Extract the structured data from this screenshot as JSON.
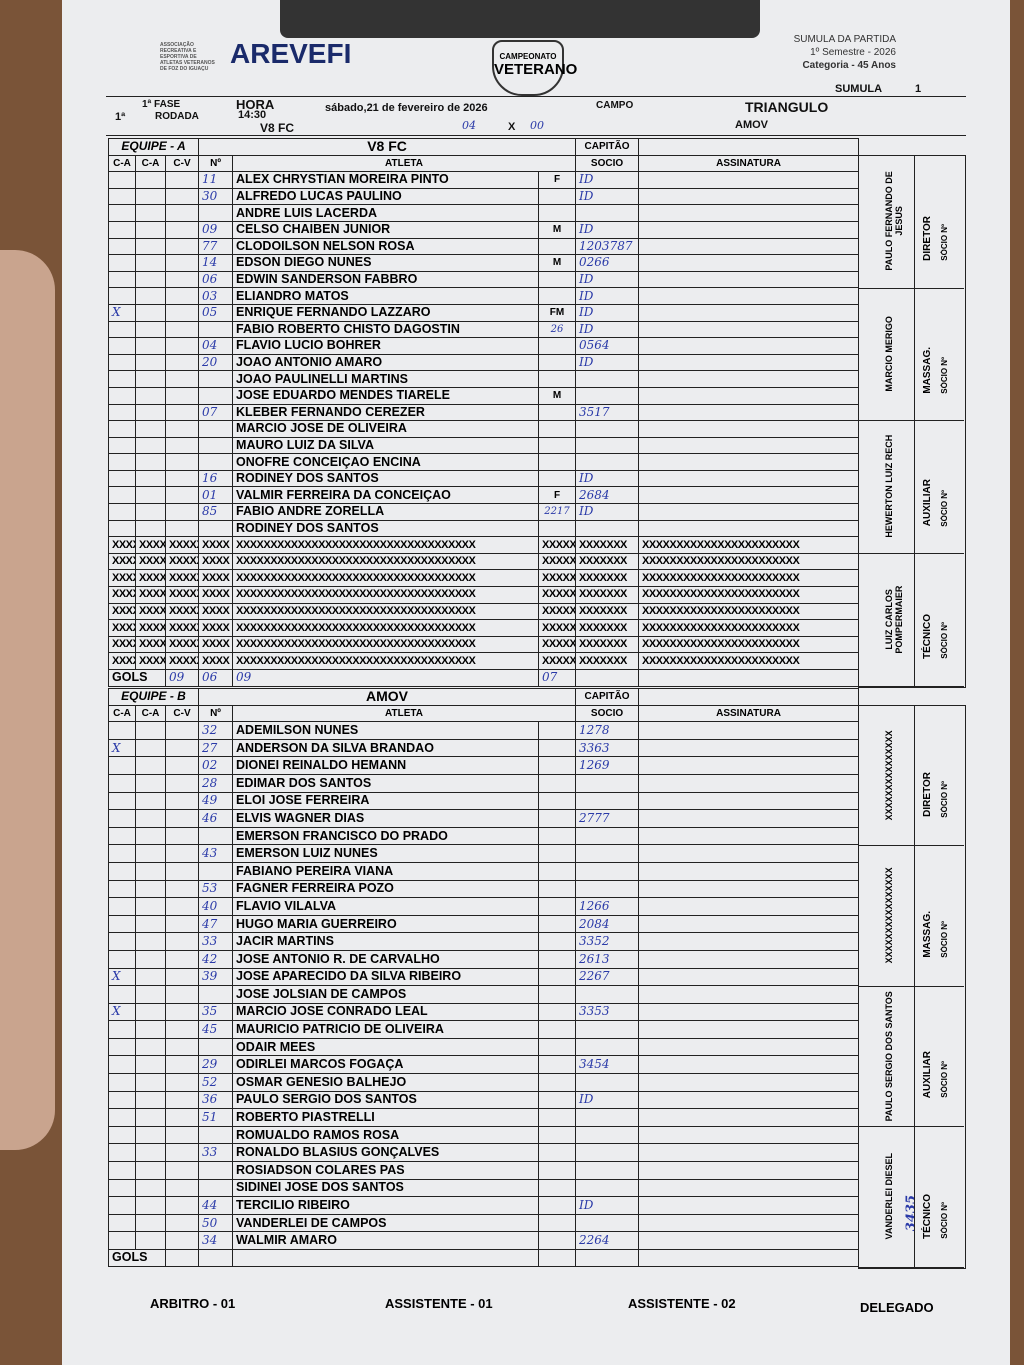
{
  "header": {
    "org": "ASSOCIAÇÃO RECREATIVA E ESPORTIVA DE ATLETAS VETERANOS DE FOZ DO IGUAÇU",
    "logo": "AREVEFI",
    "badge_top": "CAMPEONATO",
    "badge": "VETERANO",
    "doc_title": "SUMULA DA PARTIDA",
    "semester": "1º Semestre - 2026",
    "category": "Categoria - 45 Anos",
    "sumula_label": "SUMULA",
    "sumula_no": "1",
    "round": "1ª",
    "fase": "1ª FASE",
    "rodada": "RODADA",
    "hora_label": "HORA",
    "hora": "14:30",
    "date": "sábado,21 de fevereiro de 2026",
    "campo_label": "CAMPO",
    "campo": "TRIANGULO",
    "team_a": "V8 FC",
    "score_a": "04",
    "vs": "X",
    "score_b": "00",
    "team_b": "AMOV"
  },
  "labels": {
    "capitao": "CAPITÃO",
    "socio": "SOCIO",
    "atleta": "ATLETA",
    "assinatura": "ASSINATURA",
    "ca": "C-A",
    "cv": "C-V",
    "no": "Nº",
    "gols": "GOLS",
    "socio_no": "SÓCIO Nº"
  },
  "team_a": {
    "label": "EQUIPE - A",
    "name": "V8 FC",
    "gols": [
      "09",
      "06",
      "09",
      "07"
    ],
    "players": [
      [
        "",
        "",
        "",
        "11",
        "ALEX CHRYSTIAN MOREIRA PINTO",
        "F",
        "ID"
      ],
      [
        "",
        "",
        "",
        "30",
        "ALFREDO LUCAS PAULINO",
        "",
        "ID"
      ],
      [
        "",
        "",
        "",
        "",
        "ANDRE LUIS LACERDA",
        "",
        ""
      ],
      [
        "",
        "",
        "",
        "09",
        "CELSO CHAIBEN JUNIOR",
        "M",
        "ID"
      ],
      [
        "",
        "",
        "",
        "77",
        "CLODOILSON NELSON ROSA",
        "",
        "1203787"
      ],
      [
        "",
        "",
        "",
        "14",
        "EDSON DIEGO NUNES",
        "M",
        "0266"
      ],
      [
        "",
        "",
        "",
        "06",
        "EDWIN SANDERSON FABBRO",
        "",
        "ID"
      ],
      [
        "",
        "",
        "",
        "03",
        "ELIANDRO MATOS",
        "",
        "ID"
      ],
      [
        "X",
        "",
        "",
        "05",
        "ENRIQUE FERNANDO LAZZARO",
        "FM",
        "ID"
      ],
      [
        "",
        "",
        "",
        "",
        "FABIO ROBERTO CHISTO DAGOSTIN",
        "26",
        "ID"
      ],
      [
        "",
        "",
        "",
        "04",
        "FLAVIO LUCIO BOHRER",
        "",
        "0564"
      ],
      [
        "",
        "",
        "",
        "20",
        "JOAO ANTONIO AMARO",
        "",
        "ID"
      ],
      [
        "",
        "",
        "",
        "",
        "JOAO PAULINELLI MARTINS",
        "",
        ""
      ],
      [
        "",
        "",
        "",
        "",
        "JOSE EDUARDO MENDES TIARELE",
        "M",
        ""
      ],
      [
        "",
        "",
        "",
        "07",
        "KLEBER FERNANDO CEREZER",
        "",
        "3517"
      ],
      [
        "",
        "",
        "",
        "",
        "MARCIO JOSE DE OLIVEIRA",
        "",
        ""
      ],
      [
        "",
        "",
        "",
        "",
        "MAURO LUIZ DA SILVA",
        "",
        ""
      ],
      [
        "",
        "",
        "",
        "",
        "ONOFRE CONCEIÇAO ENCINA",
        "",
        ""
      ],
      [
        "",
        "",
        "",
        "16",
        "RODINEY DOS SANTOS",
        "",
        "ID"
      ],
      [
        "",
        "",
        "",
        "01",
        "VALMIR FERREIRA DA CONCEIÇAO",
        "F",
        "2684"
      ],
      [
        "",
        "",
        "",
        "85",
        "FABIO ANDRE ZORELLA",
        "2217",
        "ID"
      ],
      [
        "",
        "",
        "",
        "",
        "RODINEY DOS SANTOS",
        "",
        ""
      ]
    ],
    "blank_rows": 8,
    "staff": [
      {
        "name": "PAULO FERNANDO DE JESUS",
        "role": "DIRETOR"
      },
      {
        "name": "MARCIO MERIGO",
        "role": "MASSAG."
      },
      {
        "name": "HEWERTON LUIZ RECH",
        "role": "AUXILIAR"
      },
      {
        "name": "LUIZ CARLOS POMPERMAIER",
        "role": "TÉCNICO"
      }
    ]
  },
  "team_b": {
    "label": "EQUIPE - B",
    "name": "AMOV",
    "gols": [],
    "players": [
      [
        "",
        "",
        "",
        "32",
        "ADEMILSON NUNES",
        "",
        "1278"
      ],
      [
        "X",
        "",
        "",
        "27",
        "ANDERSON DA SILVA BRANDAO",
        "",
        "3363"
      ],
      [
        "",
        "",
        "",
        "02",
        "DIONEI REINALDO HEMANN",
        "",
        "1269"
      ],
      [
        "",
        "",
        "",
        "28",
        "EDIMAR DOS SANTOS",
        "",
        ""
      ],
      [
        "",
        "",
        "",
        "49",
        "ELOI JOSE FERREIRA",
        "",
        ""
      ],
      [
        "",
        "",
        "",
        "46",
        "ELVIS WAGNER DIAS",
        "",
        "2777"
      ],
      [
        "",
        "",
        "",
        "",
        "EMERSON FRANCISCO DO PRADO",
        "",
        ""
      ],
      [
        "",
        "",
        "",
        "43",
        "EMERSON LUIZ NUNES",
        "",
        ""
      ],
      [
        "",
        "",
        "",
        "",
        "FABIANO PEREIRA VIANA",
        "",
        ""
      ],
      [
        "",
        "",
        "",
        "53",
        "FAGNER FERREIRA POZO",
        "",
        ""
      ],
      [
        "",
        "",
        "",
        "40",
        "FLAVIO VILALVA",
        "",
        "1266"
      ],
      [
        "",
        "",
        "",
        "47",
        "HUGO MARIA GUERREIRO",
        "",
        "2084"
      ],
      [
        "",
        "",
        "",
        "33",
        "JACIR MARTINS",
        "",
        "3352"
      ],
      [
        "",
        "",
        "",
        "42",
        "JOSE ANTONIO R. DE CARVALHO",
        "",
        "2613"
      ],
      [
        "X",
        "",
        "",
        "39",
        "JOSE APARECIDO DA SILVA RIBEIRO",
        "",
        "2267"
      ],
      [
        "",
        "",
        "",
        "",
        "JOSE JOLSIAN DE CAMPOS",
        "",
        ""
      ],
      [
        "X",
        "",
        "",
        "35",
        "MARCIO JOSE CONRADO LEAL",
        "",
        "3353"
      ],
      [
        "",
        "",
        "",
        "45",
        "MAURICIO PATRICIO DE OLIVEIRA",
        "",
        ""
      ],
      [
        "",
        "",
        "",
        "",
        "ODAIR MEES",
        "",
        ""
      ],
      [
        "",
        "",
        "",
        "29",
        "ODIRLEI MARCOS FOGAÇA",
        "",
        "3454"
      ],
      [
        "",
        "",
        "",
        "52",
        "OSMAR GENESIO BALHEJO",
        "",
        ""
      ],
      [
        "",
        "",
        "",
        "36",
        "PAULO SERGIO DOS SANTOS",
        "",
        "ID"
      ],
      [
        "",
        "",
        "",
        "51",
        "ROBERTO PIASTRELLI",
        "",
        ""
      ],
      [
        "",
        "",
        "",
        "",
        "ROMUALDO RAMOS ROSA",
        "",
        ""
      ],
      [
        "",
        "",
        "",
        "33",
        "RONALDO BLASIUS GONÇALVES",
        "",
        ""
      ],
      [
        "",
        "",
        "",
        "",
        "ROSIADSON COLARES PAS",
        "",
        ""
      ],
      [
        "",
        "",
        "",
        "",
        "SIDINEI JOSE DOS SANTOS",
        "",
        ""
      ],
      [
        "",
        "",
        "",
        "44",
        "TERCILIO RIBEIRO",
        "",
        "ID"
      ],
      [
        "",
        "",
        "",
        "50",
        "VANDERLEI DE CAMPOS",
        "",
        ""
      ],
      [
        "",
        "",
        "",
        "34",
        "WALMIR AMARO",
        "",
        "2264"
      ]
    ],
    "staff": [
      {
        "name": "XXXXXXXXXXXXXXX",
        "role": "DIRETOR"
      },
      {
        "name": "XXXXXXXXXXXXXXXX",
        "role": "MASSAG."
      },
      {
        "name": "PAULO SERGIO DOS SANTOS",
        "role": "AUXILIAR"
      },
      {
        "name": "VANDERLEI DIESEL",
        "role": "TÉCNICO",
        "socio": "3435"
      }
    ]
  },
  "xrow": [
    "XXXXX",
    "XXXXX",
    "XXXXX",
    "XXXX",
    "XXXXXXXXXXXXXXXXXXXXXXXXXXXXXXXXXXX",
    "XXXXX",
    "XXXXXXX",
    "XXXXXXXXXXXXXXXXXXXXXXX"
  ],
  "footer": {
    "arbitro": "ARBITRO - 01",
    "assist1": "ASSISTENTE - 01",
    "assist2": "ASSISTENTE - 02",
    "delegado": "DELEGADO"
  }
}
